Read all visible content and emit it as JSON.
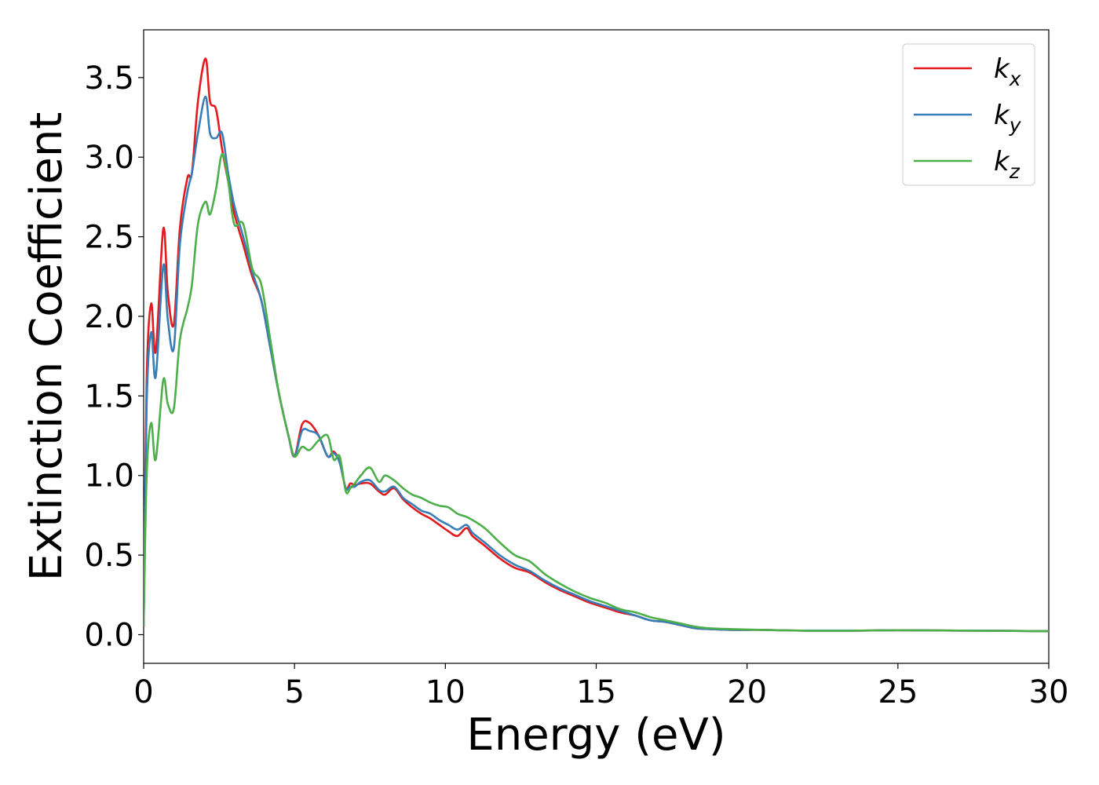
{
  "chart_data": {
    "type": "line",
    "xlabel": "Energy (eV)",
    "ylabel": "Extinction Coefficient",
    "xlim": [
      0,
      30
    ],
    "ylim": [
      -0.18,
      3.8
    ],
    "xticks": [
      0,
      5,
      10,
      15,
      20,
      25,
      30
    ],
    "xtick_labels": [
      "0",
      "5",
      "10",
      "15",
      "20",
      "25",
      "30"
    ],
    "yticks": [
      0.0,
      0.5,
      1.0,
      1.5,
      2.0,
      2.5,
      3.0,
      3.5
    ],
    "ytick_labels": [
      "0.0",
      "0.5",
      "1.0",
      "1.5",
      "2.0",
      "2.5",
      "3.0",
      "3.5"
    ],
    "grid": false,
    "legend_position": "top-right",
    "x": [
      0,
      0.1,
      0.25,
      0.4,
      0.65,
      0.8,
      1.0,
      1.2,
      1.45,
      1.6,
      1.8,
      2.05,
      2.2,
      2.4,
      2.6,
      2.8,
      3.0,
      3.3,
      3.6,
      3.9,
      4.2,
      4.5,
      4.8,
      5.0,
      5.25,
      5.5,
      5.8,
      6.1,
      6.3,
      6.5,
      6.7,
      6.85,
      7.0,
      7.2,
      7.5,
      7.8,
      8.0,
      8.3,
      8.6,
      8.9,
      9.2,
      9.5,
      9.8,
      10.1,
      10.4,
      10.7,
      10.9,
      11.3,
      11.8,
      12.3,
      12.8,
      13.3,
      13.8,
      14.3,
      14.8,
      15.3,
      15.8,
      16.3,
      16.8,
      17.3,
      17.8,
      18.3,
      18.8,
      19.5,
      20.5,
      22.0,
      23.5,
      25.0,
      26.5,
      28.0,
      30.0
    ],
    "series": [
      {
        "name": "k_x",
        "name_base": "k",
        "name_sub": "x",
        "color": "#e41a1c",
        "values": [
          0.05,
          1.6,
          2.08,
          1.78,
          2.55,
          2.15,
          1.95,
          2.55,
          2.87,
          2.9,
          3.35,
          3.62,
          3.35,
          3.3,
          3.05,
          2.85,
          2.65,
          2.45,
          2.25,
          2.1,
          1.8,
          1.5,
          1.25,
          1.12,
          1.32,
          1.33,
          1.25,
          1.12,
          1.15,
          1.08,
          0.92,
          0.95,
          0.94,
          0.95,
          0.95,
          0.9,
          0.88,
          0.92,
          0.85,
          0.8,
          0.76,
          0.73,
          0.69,
          0.65,
          0.62,
          0.67,
          0.62,
          0.56,
          0.48,
          0.42,
          0.39,
          0.33,
          0.28,
          0.24,
          0.2,
          0.17,
          0.14,
          0.12,
          0.09,
          0.08,
          0.06,
          0.04,
          0.035,
          0.03,
          0.03,
          0.025,
          0.025,
          0.028,
          0.026,
          0.025,
          0.022
        ]
      },
      {
        "name": "k_y",
        "name_base": "k",
        "name_sub": "y",
        "color": "#377eb8",
        "values": [
          0.05,
          1.45,
          1.9,
          1.62,
          2.32,
          1.98,
          1.8,
          2.45,
          2.78,
          2.9,
          3.15,
          3.38,
          3.15,
          3.12,
          3.15,
          2.9,
          2.7,
          2.5,
          2.28,
          2.1,
          1.8,
          1.5,
          1.25,
          1.12,
          1.28,
          1.28,
          1.25,
          1.12,
          1.14,
          1.08,
          0.92,
          0.93,
          0.93,
          0.96,
          0.97,
          0.91,
          0.9,
          0.93,
          0.86,
          0.82,
          0.78,
          0.76,
          0.72,
          0.69,
          0.66,
          0.69,
          0.64,
          0.58,
          0.5,
          0.44,
          0.4,
          0.34,
          0.29,
          0.25,
          0.21,
          0.18,
          0.15,
          0.12,
          0.09,
          0.08,
          0.06,
          0.04,
          0.035,
          0.03,
          0.03,
          0.025,
          0.025,
          0.028,
          0.026,
          0.025,
          0.022
        ]
      },
      {
        "name": "k_z",
        "name_base": "k",
        "name_sub": "z",
        "color": "#4daf4a",
        "values": [
          0.05,
          1.0,
          1.33,
          1.1,
          1.6,
          1.45,
          1.42,
          1.85,
          2.05,
          2.2,
          2.58,
          2.72,
          2.64,
          2.8,
          3.02,
          2.85,
          2.58,
          2.58,
          2.3,
          2.2,
          1.85,
          1.5,
          1.25,
          1.12,
          1.18,
          1.16,
          1.22,
          1.25,
          1.1,
          1.12,
          0.9,
          0.92,
          0.95,
          1.0,
          1.05,
          0.96,
          1.0,
          0.97,
          0.92,
          0.88,
          0.86,
          0.83,
          0.81,
          0.8,
          0.76,
          0.74,
          0.72,
          0.67,
          0.58,
          0.5,
          0.46,
          0.38,
          0.32,
          0.27,
          0.23,
          0.2,
          0.16,
          0.14,
          0.11,
          0.09,
          0.07,
          0.05,
          0.04,
          0.035,
          0.03,
          0.025,
          0.025,
          0.028,
          0.026,
          0.025,
          0.022
        ]
      }
    ]
  }
}
